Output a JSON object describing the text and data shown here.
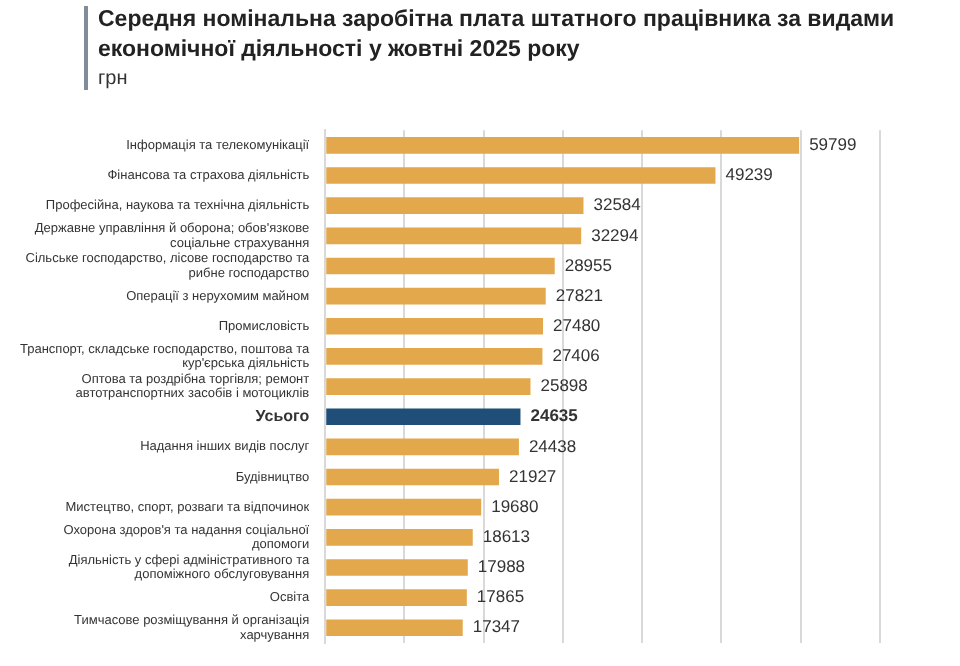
{
  "chart_data": {
    "type": "bar",
    "orientation": "horizontal",
    "title": "Середня номінальна заробітна плата штатного працівника за видами економічної діяльності у жовтні 2025 року",
    "subtitle": "грн",
    "categories": [
      "Інформація та телекомунікації",
      "Фінансова та страхова діяльність",
      "Професійна, наукова та технічна діяльність",
      "Державне управління й оборона; обов'язкове соціальне страхування",
      "Сільське господарство, лісове господарство та рибне господарство",
      "Операції з нерухомим майном",
      "Промисловість",
      "Транспорт, складське господарство, поштова та кур'єрська діяльність",
      "Оптова та роздрібна торгівля; ремонт автотранспортних засобів і мотоциклів",
      "Усього",
      "Надання інших видів послуг",
      "Будівництво",
      "Мистецтво, спорт, розваги та відпочинок",
      "Охорона здоров'я та надання соціальної допомоги",
      "Діяльність у сфері адміністративного та допоміжного обслуговування",
      "Освіта",
      "Тимчасове розміщування й організація харчування"
    ],
    "values": [
      59799,
      49239,
      32584,
      32294,
      28955,
      27821,
      27480,
      27406,
      25898,
      24635,
      24438,
      21927,
      19680,
      18613,
      17988,
      17865,
      17347
    ],
    "colors": [
      "#e3a84b",
      "#e3a84b",
      "#e3a84b",
      "#e3a84b",
      "#e3a84b",
      "#e3a84b",
      "#e3a84b",
      "#e3a84b",
      "#e3a84b",
      "#1f4e79",
      "#e3a84b",
      "#e3a84b",
      "#e3a84b",
      "#e3a84b",
      "#e3a84b",
      "#e3a84b",
      "#e3a84b"
    ],
    "xlim": [
      0,
      70000
    ],
    "xticks": [
      {
        "value": 0,
        "label": null
      },
      {
        "value": 10000,
        "label": null
      },
      {
        "value": 20000,
        "label": null
      },
      {
        "value": 30000,
        "label": null
      },
      {
        "value": 40000,
        "label": null
      },
      {
        "value": 50000,
        "label": null
      },
      {
        "value": 60000,
        "label": null
      },
      {
        "value": 70000,
        "label": null
      }
    ],
    "grid": "x",
    "data_labels": true,
    "legend": false,
    "tick_labels": "y"
  }
}
